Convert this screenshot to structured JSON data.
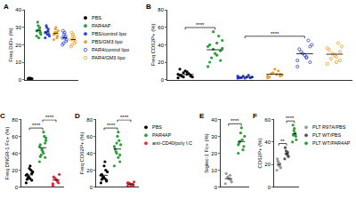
{
  "chart_data": [
    {
      "type": "scatter",
      "title": "A",
      "y_label": "Freq DiD+ (%)",
      "ylim": [
        0,
        40
      ],
      "yticks": [
        0,
        10,
        20,
        30,
        40
      ],
      "tick_labels": "y",
      "legend": "right",
      "series": [
        {
          "name": "PBS",
          "color": "#000000",
          "marker": "filled",
          "values": [
            0.3,
            0.5,
            0.8,
            0.4,
            0.6,
            0.2,
            0.7,
            0.5,
            0.9,
            0.3,
            0.4,
            0.6
          ]
        },
        {
          "name": "PAR4AP",
          "color": "#2e9e3a",
          "marker": "filled",
          "values": [
            25,
            27,
            29,
            31,
            28,
            26,
            30,
            24,
            33,
            28,
            27,
            29
          ]
        },
        {
          "name": "PBS/control lipo",
          "color": "#2f45d6",
          "marker": "filled",
          "values": [
            24,
            26,
            28,
            30,
            27,
            25,
            29,
            26,
            31,
            27
          ]
        },
        {
          "name": "PBS/GM3 lipo",
          "color": "#f0a030",
          "marker": "filled",
          "values": [
            23,
            25,
            27,
            29,
            26,
            28,
            24,
            30,
            27,
            26
          ]
        },
        {
          "name": "PAR4/control lipo",
          "color": "#2f45d6",
          "marker": "open",
          "values": [
            20,
            22,
            24,
            26,
            28,
            23,
            25,
            27,
            21,
            24
          ]
        },
        {
          "name": "PAR4/GM3 lipo",
          "color": "#f0a030",
          "marker": "open",
          "values": [
            19,
            21,
            23,
            25,
            27,
            22,
            24,
            26,
            20,
            23
          ]
        }
      ],
      "annotations": []
    },
    {
      "type": "scatter",
      "title": "B",
      "y_label": "Freq CD62P+ (%)",
      "ylim": [
        0,
        80
      ],
      "yticks": [
        0,
        20,
        40,
        60,
        80
      ],
      "tick_labels": "y",
      "series": [
        {
          "name": "PBS",
          "color": "#000000",
          "marker": "filled",
          "values": [
            2,
            4,
            6,
            8,
            5,
            3,
            7,
            10,
            4,
            6,
            5,
            9,
            3,
            12
          ]
        },
        {
          "name": "PAR4AP",
          "color": "#2e9e3a",
          "marker": "filled",
          "values": [
            15,
            22,
            28,
            35,
            40,
            45,
            50,
            30,
            25,
            38,
            33,
            42,
            55,
            20,
            36
          ]
        },
        {
          "name": "PBS/control lipo",
          "color": "#2f45d6",
          "marker": "filled",
          "values": [
            1,
            2,
            3,
            4,
            2,
            3,
            5,
            1,
            2,
            4
          ]
        },
        {
          "name": "PBS/GM3 lipo",
          "color": "#f0a030",
          "marker": "filled",
          "values": [
            2,
            4,
            6,
            8,
            3,
            5,
            10,
            12,
            7,
            4,
            6
          ]
        },
        {
          "name": "PAR4/control lipo",
          "color": "#2f45d6",
          "marker": "open",
          "values": [
            15,
            20,
            25,
            30,
            35,
            40,
            45,
            28,
            32,
            22,
            38,
            26
          ]
        },
        {
          "name": "PAR4/GM3 lipo",
          "color": "#f0a030",
          "marker": "open",
          "values": [
            18,
            22,
            26,
            30,
            34,
            38,
            42,
            28,
            24,
            36,
            32,
            20
          ]
        }
      ],
      "annotations": [
        {
          "from": 0,
          "to": 1,
          "text": "****"
        },
        {
          "from": 2,
          "to": 4,
          "text": "****"
        }
      ]
    },
    {
      "type": "scatter",
      "title": "C",
      "y_label": "Freq DNGR-1 Fc+ (%)",
      "ylim": [
        0,
        80
      ],
      "yticks": [
        0,
        20,
        40,
        60,
        80
      ],
      "tick_labels": "y",
      "series": [
        {
          "name": "PBS",
          "color": "#000000",
          "marker": "filled",
          "values": [
            5,
            8,
            10,
            12,
            15,
            18,
            20,
            22,
            10,
            14,
            16,
            25,
            12,
            9,
            18
          ]
        },
        {
          "name": "PAR4AP",
          "color": "#2e9e3a",
          "marker": "filled",
          "values": [
            30,
            35,
            40,
            45,
            50,
            55,
            60,
            42,
            38,
            48,
            52,
            65,
            44,
            36,
            58
          ]
        },
        {
          "name": "anti-CD40/poly I:C",
          "color": "#e8293a",
          "marker": "filled",
          "values": [
            2,
            5,
            8,
            10,
            12,
            15,
            6,
            9,
            11,
            4
          ]
        }
      ],
      "annotations": [
        {
          "from": 0,
          "to": 1,
          "text": "****"
        },
        {
          "from": 1,
          "to": 2,
          "text": "****"
        }
      ]
    },
    {
      "type": "scatter",
      "title": "D",
      "y_label": "Freq CD62P+ (%)",
      "ylim": [
        0,
        80
      ],
      "yticks": [
        0,
        20,
        40,
        60,
        80
      ],
      "tick_labels": "y",
      "legend": "right",
      "series": [
        {
          "name": "PBS",
          "color": "#000000",
          "marker": "filled",
          "values": [
            5,
            8,
            10,
            12,
            15,
            18,
            20,
            25,
            10,
            14,
            7,
            30,
            12,
            9
          ]
        },
        {
          "name": "PAR4AP",
          "color": "#2e9e3a",
          "marker": "filled",
          "values": [
            25,
            30,
            35,
            40,
            45,
            50,
            55,
            60,
            42,
            48,
            38,
            65,
            52
          ]
        },
        {
          "name": "anti-CD40/poly I:C",
          "color": "#e8293a",
          "marker": "filled",
          "values": [
            1,
            2,
            3,
            4,
            5,
            6,
            3,
            2,
            4,
            5
          ]
        }
      ],
      "annotations": [
        {
          "from": 0,
          "to": 1,
          "text": "****"
        },
        {
          "from": 1,
          "to": 2,
          "text": "****"
        }
      ]
    },
    {
      "type": "scatter",
      "title": "E",
      "y_label": "Siglec-1 Fc+ (%)",
      "ylim": [
        0,
        40
      ],
      "yticks": [
        0,
        10,
        20,
        30,
        40
      ],
      "tick_labels": "y",
      "series": [
        {
          "name": "PBS",
          "color": "#9a9a9a",
          "marker": "filled",
          "values": [
            2,
            4,
            5,
            6,
            8,
            3,
            7,
            5
          ]
        },
        {
          "name": "PAR4AP",
          "color": "#2e9e3a",
          "marker": "filled",
          "values": [
            20,
            24,
            28,
            32,
            26,
            30,
            22,
            35,
            27,
            25
          ]
        }
      ],
      "annotations": [
        {
          "from": 0,
          "to": 1,
          "text": "****"
        }
      ]
    },
    {
      "type": "scatter",
      "title": "F",
      "y_label": "CD62P+ (%)",
      "ylim": [
        0,
        60
      ],
      "yticks": [
        0,
        20,
        40,
        60
      ],
      "tick_labels": "y",
      "legend": "right",
      "series": [
        {
          "name": "PLT R97A/PBS",
          "color": "#9a9a9a",
          "marker": "filled",
          "values": [
            15,
            18,
            20,
            22,
            25,
            17,
            21,
            19,
            23
          ]
        },
        {
          "name": "PLT WT/PBS",
          "color": "#555555",
          "marker": "filled",
          "values": [
            25,
            28,
            30,
            32,
            35,
            27,
            31,
            29
          ]
        },
        {
          "name": "PLT WT/PAR4AP",
          "color": "#2e9e3a",
          "marker": "filled",
          "values": [
            40,
            45,
            48,
            50,
            55,
            42,
            47,
            52,
            46
          ]
        }
      ],
      "annotations": [
        {
          "from": 0,
          "to": 1,
          "text": "**"
        },
        {
          "from": 1,
          "to": 2,
          "text": "****"
        }
      ]
    }
  ]
}
